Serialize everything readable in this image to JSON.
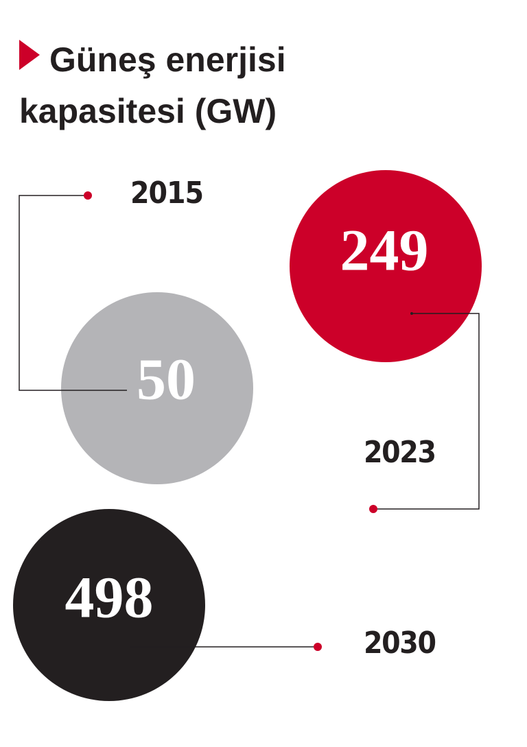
{
  "header": {
    "title": "Güneş enerjisi kapasitesi (GW)"
  },
  "items": [
    {
      "year": "2015",
      "value": 50
    },
    {
      "year": "2023",
      "value": 249
    },
    {
      "year": "2030",
      "value": 498
    }
  ]
}
